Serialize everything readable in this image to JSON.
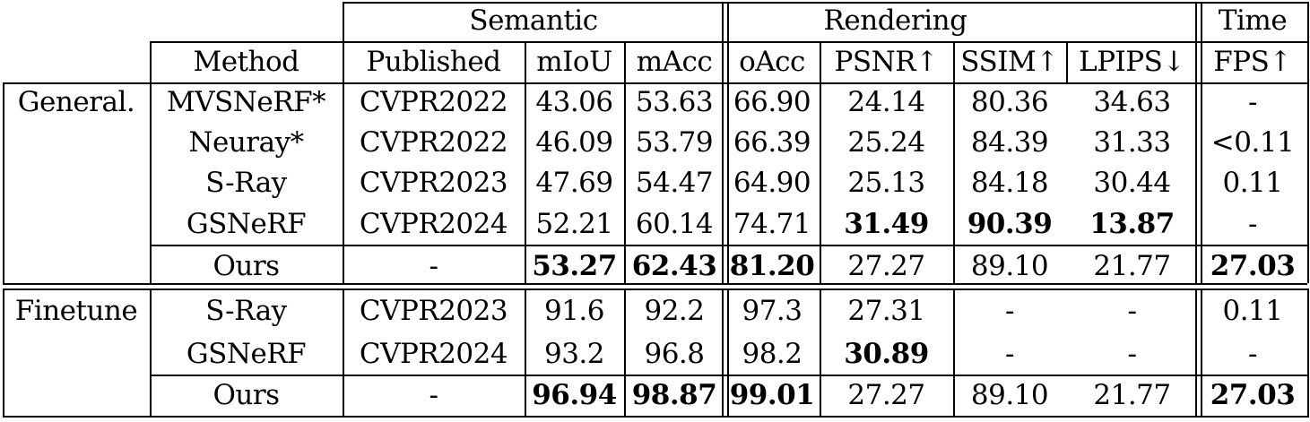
{
  "table": {
    "group_headers": {
      "semantic": "Semantic",
      "rendering": "Rendering",
      "time": "Time"
    },
    "columns": {
      "method": "Method",
      "published": "Published",
      "miou": "mIoU",
      "macc": "mAcc",
      "oacc": "oAcc",
      "psnr": "PSNR↑",
      "ssim": "SSIM↑",
      "lpips": "LPIPS↓",
      "fps": "FPS↑"
    },
    "sections": [
      {
        "label": "General.",
        "rows": [
          {
            "method": "MVSNeRF*",
            "published": "CVPR2022",
            "miou": "43.06",
            "macc": "53.63",
            "oacc": "66.90",
            "psnr": "24.14",
            "ssim": "80.36",
            "lpips": "34.63",
            "fps": "-",
            "bold": []
          },
          {
            "method": "Neuray*",
            "published": "CVPR2022",
            "miou": "46.09",
            "macc": "53.79",
            "oacc": "66.39",
            "psnr": "25.24",
            "ssim": "84.39",
            "lpips": "31.33",
            "fps": "<0.11",
            "bold": []
          },
          {
            "method": "S-Ray",
            "published": "CVPR2023",
            "miou": "47.69",
            "macc": "54.47",
            "oacc": "64.90",
            "psnr": "25.13",
            "ssim": "84.18",
            "lpips": "30.44",
            "fps": "0.11",
            "bold": []
          },
          {
            "method": "GSNeRF",
            "published": "CVPR2024",
            "miou": "52.21",
            "macc": "60.14",
            "oacc": "74.71",
            "psnr": "31.49",
            "ssim": "90.39",
            "lpips": "13.87",
            "fps": "-",
            "bold": [
              "psnr",
              "ssim",
              "lpips"
            ]
          },
          {
            "method": "Ours",
            "published": "-",
            "miou": "53.27",
            "macc": "62.43",
            "oacc": "81.20",
            "psnr": "27.27",
            "ssim": "89.10",
            "lpips": "21.77",
            "fps": "27.03",
            "bold": [
              "miou",
              "macc",
              "oacc",
              "fps"
            ]
          }
        ]
      },
      {
        "label": "Finetune",
        "rows": [
          {
            "method": "S-Ray",
            "published": "CVPR2023",
            "miou": "91.6",
            "macc": "92.2",
            "oacc": "97.3",
            "psnr": "27.31",
            "ssim": "-",
            "lpips": "-",
            "fps": "0.11",
            "bold": []
          },
          {
            "method": "GSNeRF",
            "published": "CVPR2024",
            "miou": "93.2",
            "macc": "96.8",
            "oacc": "98.2",
            "psnr": "30.89",
            "ssim": "-",
            "lpips": "-",
            "fps": "-",
            "bold": [
              "psnr"
            ]
          },
          {
            "method": "Ours",
            "published": "-",
            "miou": "96.94",
            "macc": "98.87",
            "oacc": "99.01",
            "psnr": "27.27",
            "ssim": "89.10",
            "lpips": "21.77",
            "fps": "27.03",
            "bold": [
              "miou",
              "macc",
              "oacc",
              "fps"
            ]
          }
        ]
      }
    ]
  }
}
